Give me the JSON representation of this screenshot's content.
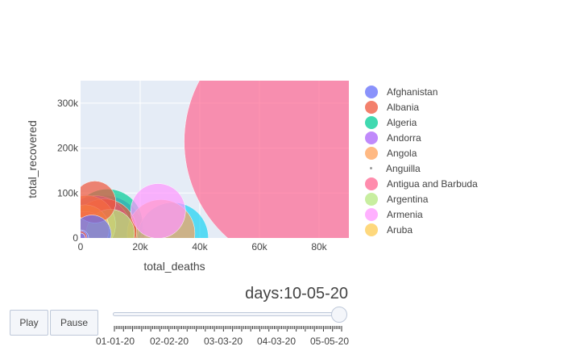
{
  "chart_data": {
    "type": "scatter",
    "xlabel": "total_deaths",
    "ylabel": "total_recovered",
    "xlim": [
      0,
      90000
    ],
    "ylim": [
      0,
      350000
    ],
    "x_ticks": [
      0,
      20000,
      40000,
      60000,
      80000
    ],
    "x_tick_labels": [
      "0",
      "20k",
      "40k",
      "60k",
      "80k"
    ],
    "y_ticks": [
      0,
      100000,
      200000,
      300000
    ],
    "y_tick_labels": [
      "0",
      "100k",
      "200k",
      "300k"
    ],
    "grid": true,
    "legend_position": "right",
    "series": [
      {
        "name": "Afghanistan",
        "color": "#636efa",
        "points": [
          [
            0,
            0,
            10
          ],
          [
            3800,
            8000,
            24
          ]
        ]
      },
      {
        "name": "Albania",
        "color": "#EF553B",
        "points": [
          [
            0,
            1000,
            8
          ],
          [
            4800,
            80000,
            26
          ],
          [
            8000,
            15000,
            40
          ]
        ]
      },
      {
        "name": "Algeria",
        "color": "#00cc96",
        "points": [
          [
            0,
            500,
            6
          ],
          [
            9000,
            30000,
            44
          ]
        ]
      },
      {
        "name": "Andorra",
        "color": "#ab63fa",
        "points": [
          [
            0,
            0,
            6
          ],
          [
            5000,
            15000,
            44
          ],
          [
            8000,
            5000,
            50
          ]
        ]
      },
      {
        "name": "Angola",
        "color": "#FFA15A",
        "points": [
          [
            2000,
            30000,
            36
          ],
          [
            27000,
            10000,
            42
          ]
        ]
      },
      {
        "name": "Anguilla",
        "color": "#19d3f3",
        "points": [
          [
            31000,
            0,
            44
          ]
        ]
      },
      {
        "name": "Antigua and Barbuda",
        "color": "#FF6692",
        "points": [
          [
            78000,
            215000,
            160
          ],
          [
            1500,
            5000,
            30
          ]
        ]
      },
      {
        "name": "Argentina",
        "color": "#B6E880",
        "points": [
          [
            10000,
            10000,
            30
          ]
        ]
      },
      {
        "name": "Armenia",
        "color": "#FF97FF",
        "points": [
          [
            26000,
            60000,
            34
          ]
        ]
      },
      {
        "name": "Aruba",
        "color": "#FECB52",
        "points": [
          [
            1500,
            20000,
            30
          ]
        ]
      }
    ]
  },
  "slider": {
    "prefix": "days:",
    "current": "10-05-20",
    "tick_labels": [
      "01-01-20",
      "02-02-20",
      "03-03-20",
      "04-03-20",
      "05-05-20"
    ]
  },
  "controls": {
    "play_label": "Play",
    "pause_label": "Pause"
  }
}
